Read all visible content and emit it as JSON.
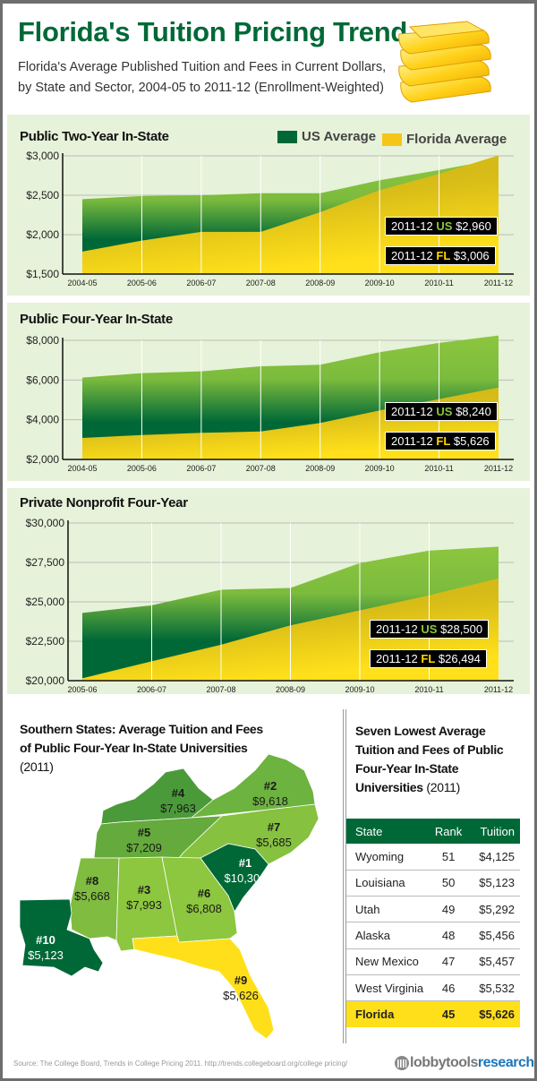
{
  "header": {
    "title": "Florida's Tuition Pricing Trend",
    "subtitle_line1": "Florida's Average Published Tuition and Fees in Current Dollars,",
    "subtitle_line2": "by State and Sector, 2004-05 to 2011-12 (Enrollment-Weighted)",
    "icon": "stack-of-books-icon"
  },
  "legend": {
    "us": "US Average",
    "fl": "Florida Average"
  },
  "colors": {
    "brand_green": "#006837",
    "light_green": "#8dc63f",
    "yellow": "#ffdf1a",
    "panel_bg": "#e6f2d9",
    "logo_blue": "#1b75bb"
  },
  "chart_data": [
    {
      "type": "area",
      "title": "Public Two-Year In-State",
      "categories": [
        "2004-05",
        "2005-06",
        "2006-07",
        "2007-08",
        "2008-09",
        "2009-10",
        "2010-11",
        "2011-12"
      ],
      "series": [
        {
          "name": "US Average",
          "values": [
            2450,
            2490,
            2500,
            2525,
            2525,
            2690,
            2820,
            2960
          ]
        },
        {
          "name": "Florida Average",
          "values": [
            1785,
            1925,
            2035,
            2035,
            2285,
            2565,
            2770,
            3006
          ]
        }
      ],
      "yticks": [
        "$1,500",
        "$2,000",
        "$2,500",
        "$3,000"
      ],
      "ytick_values": [
        1500,
        2000,
        2500,
        3000
      ],
      "ylim": [
        1500,
        3000
      ],
      "grid": true,
      "legend_position": "top-right",
      "annotations": [
        {
          "period": "2011-12",
          "code": "US",
          "value": "$2,960"
        },
        {
          "period": "2011-12",
          "code": "FL",
          "value": "$3,006"
        }
      ]
    },
    {
      "type": "area",
      "title": "Public Four-Year In-State",
      "categories": [
        "2004-05",
        "2005-06",
        "2006-07",
        "2007-08",
        "2008-09",
        "2009-10",
        "2010-11",
        "2011-12"
      ],
      "series": [
        {
          "name": "US Average",
          "values": [
            6120,
            6350,
            6440,
            6690,
            6770,
            7400,
            7870,
            8240
          ]
        },
        {
          "name": "Florida Average",
          "values": [
            3080,
            3230,
            3340,
            3410,
            3840,
            4470,
            5040,
            5626
          ]
        }
      ],
      "yticks": [
        "$2,000",
        "$4,000",
        "$6,000",
        "$8,000"
      ],
      "ytick_values": [
        2000,
        4000,
        6000,
        8000
      ],
      "ylim": [
        2000,
        8000
      ],
      "grid": true,
      "annotations": [
        {
          "period": "2011-12",
          "code": "US",
          "value": "$8,240"
        },
        {
          "period": "2011-12",
          "code": "FL",
          "value": "$5,626"
        }
      ]
    },
    {
      "type": "area",
      "title": "Private Nonprofit Four-Year",
      "categories": [
        "2005-06",
        "2006-07",
        "2007-08",
        "2008-09",
        "2009-10",
        "2010-11",
        "2011-12"
      ],
      "series": [
        {
          "name": "US Average",
          "values": [
            24300,
            24780,
            25770,
            25880,
            27460,
            28250,
            28500
          ]
        },
        {
          "name": "Florida Average",
          "values": [
            20150,
            21230,
            22280,
            23510,
            24460,
            25410,
            26494
          ]
        }
      ],
      "yticks": [
        "$20,000",
        "$22,500",
        "$25,000",
        "$27,500",
        "$30,000"
      ],
      "ytick_values": [
        20000,
        22500,
        25000,
        27500,
        30000
      ],
      "ylim": [
        20000,
        30000
      ],
      "grid": true,
      "annotations": [
        {
          "period": "2011-12",
          "code": "US",
          "value": "$28,500"
        },
        {
          "period": "2011-12",
          "code": "FL",
          "value": "$26,494"
        }
      ]
    }
  ],
  "map": {
    "title": "Southern States: Average Tuition and Fees of Public Four-Year In-State Universities",
    "year": "(2011)",
    "states": [
      {
        "rank": "#1",
        "tuition": "$10,300",
        "color": "#006837"
      },
      {
        "rank": "#2",
        "tuition": "$9,618",
        "color": "#6db33f"
      },
      {
        "rank": "#3",
        "tuition": "$7,993",
        "color": "#8dc63f"
      },
      {
        "rank": "#4",
        "tuition": "$7,963",
        "color": "#4b9a3a"
      },
      {
        "rank": "#5",
        "tuition": "$7,209",
        "color": "#65aa3c"
      },
      {
        "rank": "#6",
        "tuition": "$6,808",
        "color": "#8dc63f"
      },
      {
        "rank": "#7",
        "tuition": "$5,685",
        "color": "#86c13f"
      },
      {
        "rank": "#8",
        "tuition": "$5,668",
        "color": "#7fbc3f"
      },
      {
        "rank": "#9",
        "tuition": "$5,626",
        "color": "#ffdf1a"
      },
      {
        "rank": "#10",
        "tuition": "$5,123",
        "color": "#006837"
      }
    ]
  },
  "table": {
    "title": "Seven Lowest Average Tuition and Fees of Public Four-Year In-State Universities",
    "year": "(2011)",
    "headers": [
      "State",
      "Rank",
      "Tuition"
    ],
    "rows": [
      [
        "Wyoming",
        "51",
        "$4,125"
      ],
      [
        "Louisiana",
        "50",
        "$5,123"
      ],
      [
        "Utah",
        "49",
        "$5,292"
      ],
      [
        "Alaska",
        "48",
        "$5,456"
      ],
      [
        "New Mexico",
        "47",
        "$5,457"
      ],
      [
        "West Virginia",
        "46",
        "$5,532"
      ],
      [
        "Florida",
        "45",
        "$5,626"
      ]
    ]
  },
  "footer": {
    "source": "Source: The College Board, Trends in College Pricing 2011. http://trends.collegeboard.org/college pricing/",
    "logo_part1": "lobbytools",
    "logo_part2": "research"
  }
}
